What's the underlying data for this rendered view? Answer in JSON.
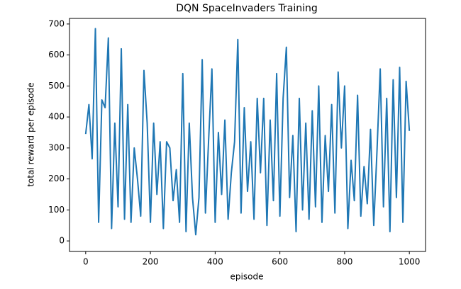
{
  "chart_data": {
    "type": "line",
    "title": "DQN SpaceInvaders Training",
    "x_label": "episode",
    "y_label": "total reward per episode",
    "x": [
      0,
      10,
      20,
      30,
      40,
      50,
      60,
      70,
      80,
      90,
      100,
      110,
      120,
      130,
      140,
      150,
      160,
      170,
      180,
      190,
      200,
      210,
      220,
      230,
      240,
      250,
      260,
      270,
      280,
      290,
      300,
      310,
      320,
      330,
      340,
      350,
      360,
      370,
      380,
      390,
      400,
      410,
      420,
      430,
      440,
      450,
      460,
      470,
      480,
      490,
      500,
      510,
      520,
      530,
      540,
      550,
      560,
      570,
      580,
      590,
      600,
      610,
      620,
      630,
      640,
      650,
      660,
      670,
      680,
      690,
      700,
      710,
      720,
      730,
      740,
      750,
      760,
      770,
      780,
      790,
      800,
      810,
      820,
      830,
      840,
      850,
      860,
      870,
      880,
      890,
      900,
      910,
      920,
      930,
      940,
      950,
      960,
      970,
      980,
      990,
      1000
    ],
    "series": [
      {
        "color": "#1f77b4",
        "values": [
          345,
          440,
          265,
          685,
          60,
          455,
          430,
          655,
          40,
          380,
          110,
          620,
          70,
          440,
          60,
          300,
          200,
          80,
          550,
          380,
          60,
          380,
          150,
          320,
          40,
          320,
          300,
          130,
          230,
          60,
          540,
          30,
          380,
          140,
          20,
          140,
          585,
          90,
          330,
          555,
          60,
          350,
          150,
          390,
          70,
          220,
          320,
          650,
          90,
          430,
          160,
          320,
          70,
          460,
          220,
          460,
          50,
          390,
          130,
          540,
          80,
          460,
          625,
          140,
          340,
          30,
          460,
          100,
          380,
          70,
          420,
          110,
          500,
          60,
          340,
          160,
          440,
          90,
          545,
          300,
          500,
          40,
          260,
          130,
          470,
          80,
          240,
          120,
          360,
          50,
          290,
          555,
          110,
          460,
          30,
          520,
          140,
          560,
          60,
          515,
          355
        ]
      }
    ],
    "xlim": [
      -50,
      1050
    ],
    "ylim": [
      -34,
      718
    ],
    "xticks": [
      0,
      200,
      400,
      600,
      800,
      1000
    ],
    "yticks": [
      0,
      100,
      200,
      300,
      400,
      500,
      600,
      700
    ],
    "grid": false
  }
}
